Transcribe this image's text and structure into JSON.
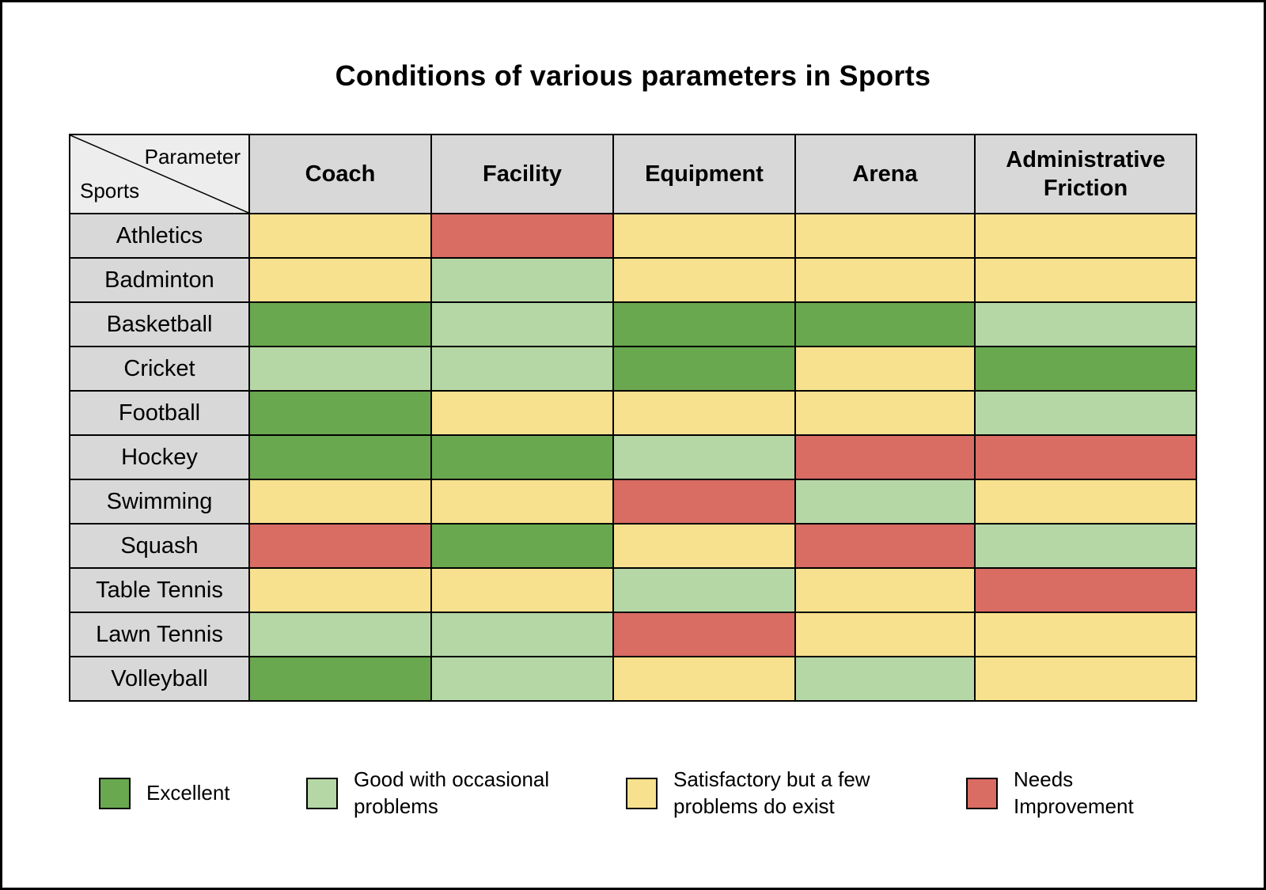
{
  "title": "Conditions of various parameters in Sports",
  "colors": {
    "excellent": "#69A84F",
    "good": "#B5D7A6",
    "satisfactory": "#F7E08E",
    "needs-improvement": "#D96C63"
  },
  "table": {
    "corner": {
      "top": "Parameter",
      "bottom": "Sports"
    },
    "columns": [
      "Coach",
      "Facility",
      "Equipment",
      "Arena",
      "Administrative Friction"
    ],
    "rows": [
      {
        "sport": "Athletics",
        "values": [
          "satisfactory",
          "needs-improvement",
          "satisfactory",
          "satisfactory",
          "satisfactory"
        ]
      },
      {
        "sport": "Badminton",
        "values": [
          "satisfactory",
          "good",
          "satisfactory",
          "satisfactory",
          "satisfactory"
        ]
      },
      {
        "sport": "Basketball",
        "values": [
          "excellent",
          "good",
          "excellent",
          "excellent",
          "good"
        ]
      },
      {
        "sport": "Cricket",
        "values": [
          "good",
          "good",
          "excellent",
          "satisfactory",
          "excellent"
        ]
      },
      {
        "sport": "Football",
        "values": [
          "excellent",
          "satisfactory",
          "satisfactory",
          "satisfactory",
          "good"
        ]
      },
      {
        "sport": "Hockey",
        "values": [
          "excellent",
          "excellent",
          "good",
          "needs-improvement",
          "needs-improvement"
        ]
      },
      {
        "sport": "Swimming",
        "values": [
          "satisfactory",
          "satisfactory",
          "needs-improvement",
          "good",
          "satisfactory"
        ]
      },
      {
        "sport": "Squash",
        "values": [
          "needs-improvement",
          "excellent",
          "satisfactory",
          "needs-improvement",
          "good"
        ]
      },
      {
        "sport": "Table Tennis",
        "values": [
          "satisfactory",
          "satisfactory",
          "good",
          "satisfactory",
          "needs-improvement"
        ]
      },
      {
        "sport": "Lawn Tennis",
        "values": [
          "good",
          "good",
          "needs-improvement",
          "satisfactory",
          "satisfactory"
        ]
      },
      {
        "sport": "Volleyball",
        "values": [
          "excellent",
          "good",
          "satisfactory",
          "good",
          "satisfactory"
        ]
      }
    ]
  },
  "legend": [
    {
      "key": "excellent",
      "label": "Excellent"
    },
    {
      "key": "good",
      "label": "Good with occasional problems"
    },
    {
      "key": "satisfactory",
      "label": "Satisfactory but a few problems do exist"
    },
    {
      "key": "needs-improvement",
      "label": "Needs Improvement"
    }
  ],
  "chart_data": {
    "type": "heatmap",
    "title": "Conditions of various parameters in Sports",
    "x_categories": [
      "Coach",
      "Facility",
      "Equipment",
      "Arena",
      "Administrative Friction"
    ],
    "y_categories": [
      "Athletics",
      "Badminton",
      "Basketball",
      "Cricket",
      "Football",
      "Hockey",
      "Swimming",
      "Squash",
      "Table Tennis",
      "Lawn Tennis",
      "Volleyball"
    ],
    "scale": {
      "excellent": "Excellent",
      "good": "Good with occasional problems",
      "satisfactory": "Satisfactory but a few problems do exist",
      "needs-improvement": "Needs Improvement"
    },
    "scale_colors": {
      "excellent": "#69A84F",
      "good": "#B5D7A6",
      "satisfactory": "#F7E08E",
      "needs-improvement": "#D96C63"
    },
    "values": [
      [
        "satisfactory",
        "needs-improvement",
        "satisfactory",
        "satisfactory",
        "satisfactory"
      ],
      [
        "satisfactory",
        "good",
        "satisfactory",
        "satisfactory",
        "satisfactory"
      ],
      [
        "excellent",
        "good",
        "excellent",
        "excellent",
        "good"
      ],
      [
        "good",
        "good",
        "excellent",
        "satisfactory",
        "excellent"
      ],
      [
        "excellent",
        "satisfactory",
        "satisfactory",
        "satisfactory",
        "good"
      ],
      [
        "excellent",
        "excellent",
        "good",
        "needs-improvement",
        "needs-improvement"
      ],
      [
        "satisfactory",
        "satisfactory",
        "needs-improvement",
        "good",
        "satisfactory"
      ],
      [
        "needs-improvement",
        "excellent",
        "satisfactory",
        "needs-improvement",
        "good"
      ],
      [
        "satisfactory",
        "satisfactory",
        "good",
        "satisfactory",
        "needs-improvement"
      ],
      [
        "good",
        "good",
        "needs-improvement",
        "satisfactory",
        "satisfactory"
      ],
      [
        "excellent",
        "good",
        "satisfactory",
        "good",
        "satisfactory"
      ]
    ],
    "legend_position": "bottom",
    "grid": true
  }
}
